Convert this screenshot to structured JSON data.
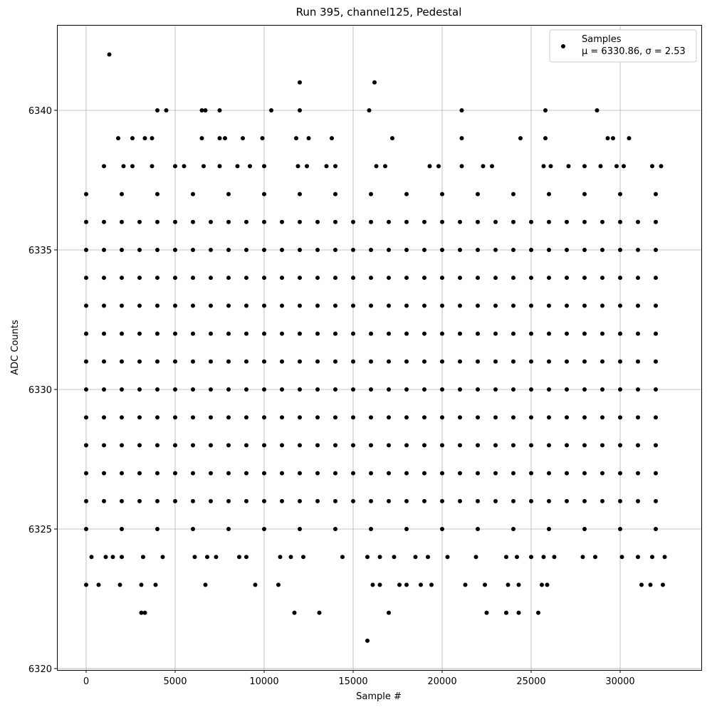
{
  "chart_data": {
    "type": "scatter",
    "title": "Run 395, channel125, Pedestal",
    "x_label": "Sample #",
    "y_label": "ADC Counts",
    "xlim": [
      -1640,
      34560
    ],
    "ylim": [
      6319.95,
      6343.06
    ],
    "xticks": [
      0,
      5000,
      10000,
      15000,
      20000,
      25000,
      30000
    ],
    "yticks": [
      6320,
      6325,
      6330,
      6335,
      6340
    ],
    "grid": true,
    "legend": "upper right",
    "legend_note": "μ = 6330.86, σ = 2.53",
    "x": [
      0,
      1000,
      2000,
      3000,
      4000,
      5000,
      6000,
      7000,
      8000,
      9000,
      10000,
      11000,
      12000,
      13000,
      14000,
      15000,
      16000,
      17000,
      18000,
      19000,
      20000,
      21000,
      22000,
      23000,
      24000,
      25000,
      26000,
      27000,
      28000,
      29000,
      30000,
      31000,
      32000,
      0,
      1000,
      2000,
      3000,
      4000,
      5000,
      6000,
      7000,
      8000,
      9000,
      10000,
      11000,
      12000,
      13000,
      14000,
      15000,
      16000,
      17000,
      18000,
      19000,
      20000,
      21000,
      22000,
      23000,
      24000,
      25000,
      26000,
      27000,
      28000,
      29000,
      30000,
      31000,
      32000,
      0,
      1000,
      2000,
      3000,
      4000,
      5000,
      6000,
      7000,
      8000,
      9000,
      10000,
      11000,
      12000,
      13000,
      14000,
      15000,
      16000,
      17000,
      18000,
      19000,
      20000,
      21000,
      22000,
      23000,
      24000,
      25000,
      26000,
      27000,
      28000,
      29000,
      30000,
      31000,
      32000,
      0,
      1000,
      2000,
      3000,
      4000,
      5000,
      6000,
      7000,
      8000,
      9000,
      10000,
      11000,
      12000,
      13000,
      14000,
      15000,
      16000,
      17000,
      18000,
      19000,
      20000,
      21000,
      22000,
      23000,
      24000,
      25000,
      26000,
      27000,
      28000,
      29000,
      30000,
      31000,
      32000,
      0,
      1000,
      2000,
      3000,
      4000,
      5000,
      6000,
      7000,
      8000,
      9000,
      10000,
      11000,
      12000,
      13000,
      14000,
      15000,
      16000,
      17000,
      18000,
      19000,
      20000,
      21000,
      22000,
      23000,
      24000,
      25000,
      26000,
      27000,
      28000,
      29000,
      30000,
      31000,
      32000,
      0,
      1000,
      2000,
      3000,
      4000,
      5000,
      6000,
      7000,
      8000,
      9000,
      10000,
      11000,
      12000,
      13000,
      14000,
      15000,
      16000,
      17000,
      18000,
      19000,
      20000,
      21000,
      22000,
      23000,
      24000,
      25000,
      26000,
      27000,
      28000,
      29000,
      30000,
      31000,
      32000,
      0,
      1000,
      2000,
      3000,
      4000,
      5000,
      6000,
      7000,
      8000,
      9000,
      10000,
      11000,
      12000,
      13000,
      14000,
      15000,
      16000,
      17000,
      18000,
      19000,
      20000,
      21000,
      22000,
      23000,
      24000,
      25000,
      26000,
      27000,
      28000,
      29000,
      30000,
      31000,
      32000,
      0,
      1000,
      2000,
      3000,
      4000,
      5000,
      6000,
      7000,
      8000,
      9000,
      10000,
      11000,
      12000,
      13000,
      14000,
      15000,
      16000,
      17000,
      18000,
      19000,
      20000,
      21000,
      22000,
      23000,
      24000,
      25000,
      26000,
      27000,
      28000,
      29000,
      30000,
      31000,
      32000,
      0,
      1000,
      2000,
      3000,
      4000,
      5000,
      6000,
      7000,
      8000,
      9000,
      10000,
      11000,
      12000,
      13000,
      14000,
      15000,
      16000,
      17000,
      18000,
      19000,
      20000,
      21000,
      22000,
      23000,
      24000,
      25000,
      26000,
      27000,
      28000,
      29000,
      30000,
      31000,
      32000,
      0,
      1000,
      2000,
      3000,
      4000,
      5000,
      6000,
      7000,
      8000,
      9000,
      10000,
      11000,
      12000,
      13000,
      14000,
      15000,
      16000,
      17000,
      18000,
      19000,
      20000,
      21000,
      22000,
      23000,
      24000,
      25000,
      26000,
      27000,
      28000,
      29000,
      30000,
      31000,
      32000,
      0,
      1000,
      2000,
      3000,
      4000,
      5000,
      6000,
      7000,
      8000,
      9000,
      10000,
      11000,
      12000,
      13000,
      14000,
      15000,
      16000,
      17000,
      18000,
      19000,
      20000,
      21000,
      22000,
      23000,
      24000,
      25000,
      26000,
      27000,
      28000,
      29000,
      30000,
      31000,
      32000,
      0,
      2000,
      4000,
      6000,
      8000,
      10000,
      12000,
      14000,
      16000,
      18000,
      20000,
      22000,
      24000,
      26000,
      28000,
      30000,
      32000,
      0,
      2000,
      4000,
      6000,
      8000,
      10000,
      12000,
      14000,
      16000,
      18000,
      20000,
      22000,
      24000,
      26000,
      28000,
      30000,
      32000,
      1300,
      12000,
      16200,
      4000,
      4500,
      6500,
      6700,
      7500,
      10400,
      12000,
      15900,
      21100,
      25800,
      28700,
      1800,
      2600,
      3300,
      3700,
      6500,
      7500,
      7800,
      8800,
      9900,
      11800,
      12500,
      13800,
      17200,
      21100,
      24400,
      25800,
      29300,
      29600,
      30500,
      1000,
      2100,
      2600,
      3700,
      5000,
      5500,
      6600,
      7500,
      8500,
      9200,
      10000,
      11900,
      12400,
      13500,
      14000,
      16300,
      16800,
      19300,
      19800,
      21100,
      22300,
      22800,
      25700,
      26100,
      27100,
      28000,
      28900,
      29800,
      30200,
      31800,
      32300,
      300,
      1100,
      1500,
      2000,
      3200,
      4300,
      6100,
      6800,
      7300,
      8600,
      9000,
      10900,
      11500,
      12200,
      14400,
      15800,
      16500,
      17300,
      18500,
      19200,
      20300,
      21900,
      23600,
      24200,
      25000,
      25700,
      26300,
      27900,
      28600,
      30100,
      31000,
      31800,
      32500,
      0,
      700,
      1900,
      3100,
      3900,
      6700,
      9500,
      10800,
      16100,
      16500,
      17600,
      18000,
      18800,
      19400,
      21300,
      22400,
      23700,
      24300,
      25600,
      25900,
      31200,
      31700,
      32400,
      3100,
      3300,
      11700,
      13100,
      17000,
      22500,
      23600,
      24300,
      25400,
      15800
    ],
    "series": [
      {
        "name": "Samples",
        "color": "#000000",
        "values": [
          6336,
          6336,
          6336,
          6336,
          6336,
          6336,
          6336,
          6336,
          6336,
          6336,
          6336,
          6336,
          6336,
          6336,
          6336,
          6336,
          6336,
          6336,
          6336,
          6336,
          6336,
          6336,
          6336,
          6336,
          6336,
          6336,
          6336,
          6336,
          6336,
          6336,
          6336,
          6336,
          6336,
          6335,
          6335,
          6335,
          6335,
          6335,
          6335,
          6335,
          6335,
          6335,
          6335,
          6335,
          6335,
          6335,
          6335,
          6335,
          6335,
          6335,
          6335,
          6335,
          6335,
          6335,
          6335,
          6335,
          6335,
          6335,
          6335,
          6335,
          6335,
          6335,
          6335,
          6335,
          6335,
          6335,
          6334,
          6334,
          6334,
          6334,
          6334,
          6334,
          6334,
          6334,
          6334,
          6334,
          6334,
          6334,
          6334,
          6334,
          6334,
          6334,
          6334,
          6334,
          6334,
          6334,
          6334,
          6334,
          6334,
          6334,
          6334,
          6334,
          6334,
          6334,
          6334,
          6334,
          6334,
          6334,
          6334,
          6333,
          6333,
          6333,
          6333,
          6333,
          6333,
          6333,
          6333,
          6333,
          6333,
          6333,
          6333,
          6333,
          6333,
          6333,
          6333,
          6333,
          6333,
          6333,
          6333,
          6333,
          6333,
          6333,
          6333,
          6333,
          6333,
          6333,
          6333,
          6333,
          6333,
          6333,
          6333,
          6333,
          6332,
          6332,
          6332,
          6332,
          6332,
          6332,
          6332,
          6332,
          6332,
          6332,
          6332,
          6332,
          6332,
          6332,
          6332,
          6332,
          6332,
          6332,
          6332,
          6332,
          6332,
          6332,
          6332,
          6332,
          6332,
          6332,
          6332,
          6332,
          6332,
          6332,
          6332,
          6332,
          6332,
          6331,
          6331,
          6331,
          6331,
          6331,
          6331,
          6331,
          6331,
          6331,
          6331,
          6331,
          6331,
          6331,
          6331,
          6331,
          6331,
          6331,
          6331,
          6331,
          6331,
          6331,
          6331,
          6331,
          6331,
          6331,
          6331,
          6331,
          6331,
          6331,
          6331,
          6331,
          6331,
          6331,
          6330,
          6330,
          6330,
          6330,
          6330,
          6330,
          6330,
          6330,
          6330,
          6330,
          6330,
          6330,
          6330,
          6330,
          6330,
          6330,
          6330,
          6330,
          6330,
          6330,
          6330,
          6330,
          6330,
          6330,
          6330,
          6330,
          6330,
          6330,
          6330,
          6330,
          6330,
          6330,
          6330,
          6329,
          6329,
          6329,
          6329,
          6329,
          6329,
          6329,
          6329,
          6329,
          6329,
          6329,
          6329,
          6329,
          6329,
          6329,
          6329,
          6329,
          6329,
          6329,
          6329,
          6329,
          6329,
          6329,
          6329,
          6329,
          6329,
          6329,
          6329,
          6329,
          6329,
          6329,
          6329,
          6329,
          6328,
          6328,
          6328,
          6328,
          6328,
          6328,
          6328,
          6328,
          6328,
          6328,
          6328,
          6328,
          6328,
          6328,
          6328,
          6328,
          6328,
          6328,
          6328,
          6328,
          6328,
          6328,
          6328,
          6328,
          6328,
          6328,
          6328,
          6328,
          6328,
          6328,
          6328,
          6328,
          6328,
          6327,
          6327,
          6327,
          6327,
          6327,
          6327,
          6327,
          6327,
          6327,
          6327,
          6327,
          6327,
          6327,
          6327,
          6327,
          6327,
          6327,
          6327,
          6327,
          6327,
          6327,
          6327,
          6327,
          6327,
          6327,
          6327,
          6327,
          6327,
          6327,
          6327,
          6327,
          6327,
          6327,
          6326,
          6326,
          6326,
          6326,
          6326,
          6326,
          6326,
          6326,
          6326,
          6326,
          6326,
          6326,
          6326,
          6326,
          6326,
          6326,
          6326,
          6326,
          6326,
          6326,
          6326,
          6326,
          6326,
          6326,
          6326,
          6326,
          6326,
          6326,
          6326,
          6326,
          6326,
          6326,
          6326,
          6337,
          6337,
          6337,
          6337,
          6337,
          6337,
          6337,
          6337,
          6337,
          6337,
          6337,
          6337,
          6337,
          6337,
          6337,
          6337,
          6337,
          6325,
          6325,
          6325,
          6325,
          6325,
          6325,
          6325,
          6325,
          6325,
          6325,
          6325,
          6325,
          6325,
          6325,
          6325,
          6325,
          6325,
          6342,
          6341,
          6341,
          6340,
          6340,
          6340,
          6340,
          6340,
          6340,
          6340,
          6340,
          6340,
          6340,
          6340,
          6339,
          6339,
          6339,
          6339,
          6339,
          6339,
          6339,
          6339,
          6339,
          6339,
          6339,
          6339,
          6339,
          6339,
          6339,
          6339,
          6339,
          6339,
          6339,
          6338,
          6338,
          6338,
          6338,
          6338,
          6338,
          6338,
          6338,
          6338,
          6338,
          6338,
          6338,
          6338,
          6338,
          6338,
          6338,
          6338,
          6338,
          6338,
          6338,
          6338,
          6338,
          6338,
          6338,
          6338,
          6338,
          6338,
          6338,
          6338,
          6338,
          6338,
          6324,
          6324,
          6324,
          6324,
          6324,
          6324,
          6324,
          6324,
          6324,
          6324,
          6324,
          6324,
          6324,
          6324,
          6324,
          6324,
          6324,
          6324,
          6324,
          6324,
          6324,
          6324,
          6324,
          6324,
          6324,
          6324,
          6324,
          6324,
          6324,
          6324,
          6324,
          6324,
          6324,
          6323,
          6323,
          6323,
          6323,
          6323,
          6323,
          6323,
          6323,
          6323,
          6323,
          6323,
          6323,
          6323,
          6323,
          6323,
          6323,
          6323,
          6323,
          6323,
          6323,
          6323,
          6323,
          6323,
          6322,
          6322,
          6322,
          6322,
          6322,
          6322,
          6322,
          6322,
          6322,
          6321
        ]
      }
    ]
  }
}
